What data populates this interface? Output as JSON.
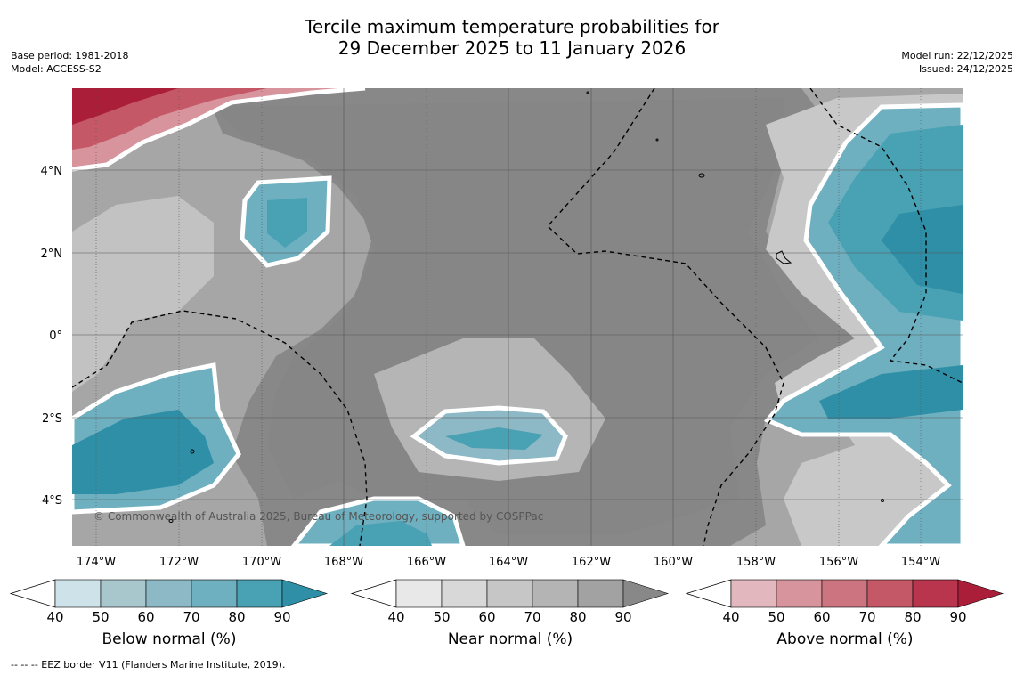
{
  "title_line1": "Tercile maximum temperature probabilities for",
  "title_line2": "29 December 2025 to 11 January 2026",
  "meta_left": {
    "base_period": "Base period: 1981-2018",
    "model": "Model: ACCESS-S2"
  },
  "meta_right": {
    "model_run": "Model run: 22/12/2025",
    "issued": "Issued: 24/12/2025"
  },
  "axes": {
    "lon_labels": [
      "174°W",
      "172°W",
      "170°W",
      "168°W",
      "166°W",
      "164°W",
      "162°W",
      "160°W",
      "158°W",
      "156°W",
      "154°W"
    ],
    "lat_labels": [
      "4°N",
      "2°N",
      "0°",
      "2°S",
      "4°S"
    ]
  },
  "copyright": "© Commonwealth of Australia 2025, Bureau of Meteorology, supported by COSPPac",
  "colorbars": [
    {
      "caption": "Below normal (%)",
      "ticks": [
        "40",
        "50",
        "60",
        "70",
        "80",
        "90"
      ],
      "colors": [
        "#cde3e9",
        "#a8c7cd",
        "#8db8c5",
        "#6eb0c0",
        "#49a1b4",
        "#2e8fa6"
      ]
    },
    {
      "caption": "Near normal (%)",
      "ticks": [
        "40",
        "50",
        "60",
        "70",
        "80",
        "90"
      ],
      "colors": [
        "#e8e8e8",
        "#d8d8d8",
        "#c6c6c6",
        "#b4b4b4",
        "#a2a2a2",
        "#888888"
      ]
    },
    {
      "caption": "Above normal (%)",
      "ticks": [
        "40",
        "50",
        "60",
        "70",
        "80",
        "90"
      ],
      "colors": [
        "#e3b7be",
        "#d8949d",
        "#cc7580",
        "#c45866",
        "#b8354d",
        "#ab1e3a"
      ]
    }
  ],
  "footer": "--  --  -- EEZ border V11 (Flanders Marine Institute, 2019)."
}
